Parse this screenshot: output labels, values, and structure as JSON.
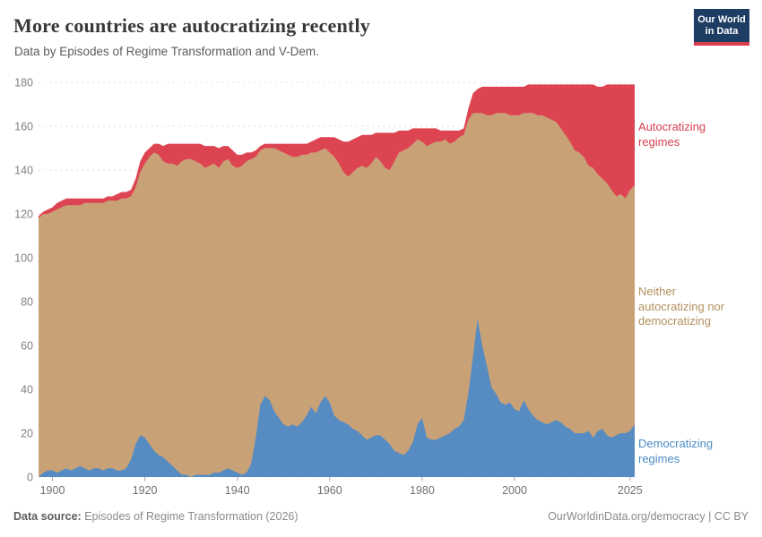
{
  "header": {
    "title": "More countries are autocratizing recently",
    "subtitle": "Data by Episodes of Regime Transformation and V-Dem."
  },
  "logo": {
    "line1": "Our World",
    "line2": "in Data",
    "bg_color": "#1d3d63",
    "accent_color": "#dc3e4e"
  },
  "footer": {
    "source_label": "Data source:",
    "source_value": "Episodes of Regime Transformation (2026)",
    "citation": "OurWorldinData.org/democracy | CC BY"
  },
  "chart_data": {
    "type": "area",
    "stacked": true,
    "title": "More countries are autocratizing recently",
    "subtitle": "Data by Episodes of Regime Transformation and V-Dem.",
    "xlabel": "",
    "ylabel": "",
    "x": {
      "start": 1897,
      "end": 2026,
      "step": 1
    },
    "xlim": [
      1897,
      2026
    ],
    "ylim": [
      0,
      180
    ],
    "x_ticks": [
      1900,
      1920,
      1940,
      1960,
      1980,
      2000,
      2025
    ],
    "y_ticks": [
      0,
      20,
      40,
      60,
      80,
      100,
      120,
      140,
      160,
      180
    ],
    "grid": "dashed-horizontal",
    "legend_position": "right",
    "axis_label_color": "#818181",
    "grid_color": "#e2e2e2",
    "series": [
      {
        "name": "Democratizing regimes",
        "color": "#568cc2",
        "values": [
          0,
          2,
          3,
          3,
          2,
          3,
          4,
          3,
          4,
          5,
          4,
          3,
          4,
          4,
          3,
          4,
          4,
          3,
          3,
          4,
          8,
          15,
          19,
          18,
          15,
          12,
          10,
          9,
          7,
          5,
          3,
          1,
          1,
          0,
          1,
          1,
          1,
          1,
          2,
          2,
          3,
          4,
          3,
          2,
          1,
          2,
          6,
          18,
          33,
          37,
          35,
          30,
          27,
          24,
          23,
          24,
          23,
          25,
          28,
          32,
          29,
          34,
          37,
          34,
          28,
          26,
          25,
          24,
          22,
          21,
          19,
          17,
          18,
          19,
          19,
          17,
          15,
          12,
          11,
          10,
          12,
          16,
          24,
          27,
          18,
          17,
          17,
          18,
          19,
          20,
          22,
          23,
          26,
          38,
          55,
          72,
          60,
          51,
          41,
          38,
          34,
          33,
          34,
          31,
          30,
          35,
          31,
          28,
          26,
          25,
          24,
          25,
          26,
          25,
          23,
          22,
          20,
          20,
          20,
          21,
          18,
          21,
          22,
          19,
          18,
          19,
          20,
          20,
          21,
          24
        ]
      },
      {
        "name": "Neither autocratizing nor democratizing",
        "color": "#c9a177",
        "values": [
          118,
          118,
          117,
          118,
          120,
          120,
          120,
          121,
          120,
          119,
          121,
          122,
          121,
          121,
          122,
          122,
          122,
          123,
          124,
          123,
          120,
          117,
          120,
          125,
          131,
          136,
          137,
          135,
          136,
          138,
          139,
          143,
          144,
          145,
          143,
          142,
          140,
          141,
          141,
          139,
          141,
          141,
          139,
          139,
          141,
          142,
          139,
          128,
          116,
          113,
          115,
          120,
          122,
          124,
          124,
          122,
          123,
          122,
          119,
          116,
          119,
          115,
          113,
          114,
          118,
          117,
          114,
          113,
          117,
          120,
          123,
          124,
          125,
          127,
          125,
          124,
          125,
          132,
          137,
          139,
          138,
          136,
          130,
          126,
          133,
          135,
          136,
          135,
          135,
          132,
          131,
          132,
          130,
          125,
          111,
          94,
          106,
          114,
          124,
          128,
          132,
          133,
          131,
          134,
          135,
          131,
          135,
          138,
          139,
          140,
          140,
          138,
          136,
          134,
          133,
          131,
          129,
          128,
          126,
          121,
          123,
          117,
          114,
          115,
          113,
          109,
          109,
          107,
          110,
          109
        ]
      },
      {
        "name": "Autocratizing regimes",
        "color": "#dd4452",
        "values": [
          1,
          1,
          2,
          2,
          3,
          3,
          3,
          3,
          3,
          3,
          2,
          2,
          2,
          2,
          2,
          2,
          2,
          3,
          3,
          3,
          3,
          4,
          5,
          5,
          4,
          4,
          5,
          7,
          9,
          9,
          10,
          8,
          7,
          7,
          8,
          9,
          10,
          9,
          8,
          9,
          7,
          6,
          7,
          6,
          5,
          4,
          3,
          3,
          2,
          2,
          2,
          2,
          3,
          4,
          5,
          6,
          6,
          5,
          5,
          5,
          6,
          6,
          5,
          7,
          9,
          11,
          14,
          16,
          15,
          14,
          14,
          15,
          13,
          11,
          13,
          16,
          17,
          13,
          10,
          9,
          8,
          7,
          5,
          6,
          8,
          7,
          6,
          5,
          4,
          6,
          5,
          3,
          3,
          5,
          9,
          11,
          12,
          13,
          13,
          12,
          12,
          12,
          13,
          13,
          13,
          12,
          13,
          13,
          14,
          14,
          15,
          16,
          17,
          20,
          23,
          26,
          30,
          31,
          33,
          37,
          38,
          40,
          42,
          45,
          48,
          51,
          50,
          52,
          48,
          46
        ]
      }
    ]
  }
}
